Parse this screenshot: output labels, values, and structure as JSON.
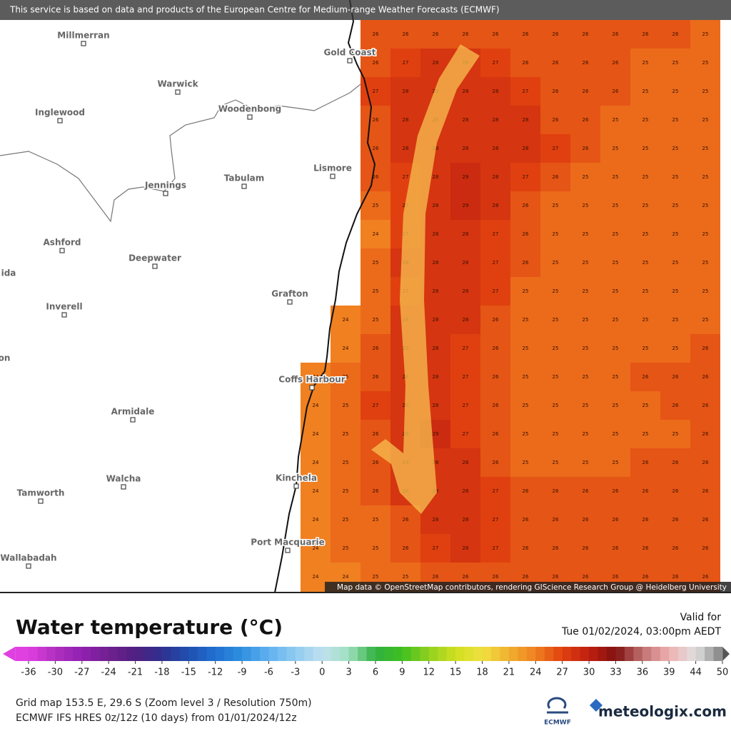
{
  "header": {
    "attribution": "This service is based on data and products of the European Centre for Medium-range Weather Forecasts (ECMWF)"
  },
  "map": {
    "towns": [
      "Millmerran",
      "Warwick",
      "Gold Coast",
      "Inglewood",
      "Woodenbong",
      "Lismore",
      "Tabulam",
      "Jennings",
      "Ashford",
      "Deepwater",
      "Grafton",
      "Inverell",
      "Coffs Harbour",
      "Armidale",
      "Walcha",
      "Kinchela",
      "Tamworth",
      "Port Macquarie",
      "Wallabadah",
      "ida",
      "on"
    ],
    "credit": "Map data © OpenStreetMap contributors, rendering GIScience Research Group @ Heidelberg University"
  },
  "sea": {
    "grid": [
      [
        null,
        null,
        null,
        26,
        26,
        26,
        26,
        26,
        26,
        26,
        26,
        26,
        26,
        26,
        25
      ],
      [
        null,
        null,
        null,
        26,
        27,
        28,
        28,
        27,
        26,
        26,
        26,
        26,
        25,
        25,
        25
      ],
      [
        null,
        null,
        null,
        27,
        28,
        28,
        28,
        28,
        27,
        26,
        26,
        26,
        25,
        25,
        25
      ],
      [
        null,
        null,
        null,
        26,
        28,
        28,
        28,
        28,
        28,
        26,
        26,
        25,
        25,
        25,
        25
      ],
      [
        null,
        null,
        null,
        26,
        28,
        28,
        28,
        28,
        28,
        27,
        26,
        25,
        25,
        25,
        25
      ],
      [
        null,
        null,
        null,
        26,
        27,
        28,
        29,
        28,
        27,
        26,
        25,
        25,
        25,
        25,
        25
      ],
      [
        null,
        null,
        null,
        25,
        27,
        28,
        29,
        28,
        26,
        25,
        25,
        25,
        25,
        25,
        25
      ],
      [
        null,
        null,
        null,
        24,
        27,
        28,
        28,
        27,
        26,
        25,
        25,
        25,
        25,
        25,
        25
      ],
      [
        null,
        null,
        null,
        25,
        28,
        28,
        28,
        27,
        26,
        25,
        25,
        25,
        25,
        25,
        25
      ],
      [
        null,
        null,
        null,
        25,
        27,
        28,
        28,
        27,
        25,
        25,
        25,
        25,
        25,
        25,
        25
      ],
      [
        null,
        null,
        24,
        25,
        28,
        28,
        28,
        26,
        25,
        25,
        25,
        25,
        25,
        25,
        25
      ],
      [
        null,
        null,
        24,
        26,
        28,
        28,
        27,
        26,
        25,
        25,
        25,
        25,
        25,
        25,
        26
      ],
      [
        null,
        24,
        25,
        26,
        28,
        28,
        27,
        26,
        25,
        25,
        25,
        25,
        26,
        26,
        26
      ],
      [
        null,
        24,
        25,
        27,
        28,
        28,
        27,
        26,
        25,
        25,
        25,
        25,
        25,
        26,
        26
      ],
      [
        null,
        24,
        25,
        26,
        28,
        29,
        27,
        26,
        25,
        25,
        25,
        25,
        25,
        25,
        26
      ],
      [
        null,
        24,
        25,
        26,
        28,
        28,
        28,
        26,
        25,
        25,
        25,
        25,
        26,
        26,
        26
      ],
      [
        null,
        24,
        25,
        26,
        28,
        28,
        28,
        27,
        26,
        26,
        26,
        26,
        26,
        26,
        26
      ],
      [
        null,
        24,
        25,
        25,
        26,
        28,
        28,
        27,
        26,
        26,
        26,
        26,
        26,
        26,
        26
      ],
      [
        null,
        24,
        25,
        25,
        26,
        27,
        28,
        27,
        26,
        26,
        26,
        26,
        26,
        26,
        26
      ],
      [
        null,
        24,
        24,
        25,
        25,
        26,
        26,
        26,
        26,
        26,
        26,
        26,
        26,
        26,
        26
      ]
    ]
  },
  "title": "Water temperature (°C)",
  "valid_label": "Valid for",
  "valid_time": "Tue 01/02/2024, 03:00pm AEDT",
  "legend": {
    "ticks": [
      -36,
      -30,
      -27,
      -24,
      -21,
      -18,
      -15,
      -12,
      -9,
      -6,
      -3,
      0,
      3,
      6,
      9,
      12,
      15,
      18,
      21,
      24,
      27,
      30,
      33,
      36,
      39,
      44,
      50
    ],
    "colors": [
      "#e040e0",
      "#b030c0",
      "#9020b0",
      "#702090",
      "#502080",
      "#303090",
      "#2050b0",
      "#2070d0",
      "#3090e0",
      "#60b0f0",
      "#90ccf0",
      "#c0e0f0",
      "#a0e0c0",
      "#30b040",
      "#40c020",
      "#90d020",
      "#d0e020",
      "#f0e040",
      "#f0b030",
      "#f08020",
      "#e04010",
      "#c02010",
      "#801010",
      "#c07070",
      "#f0b0b0",
      "#e0e0e0",
      "#808080"
    ]
  },
  "footer": {
    "grid_info": "Grid map 153.5 E, 29.6 S (Zoom level 3 / Resolution 750m)",
    "model_info": "ECMWF IFS HRES 0z/12z (10 days) from 01/01/2024/12z"
  },
  "logos": {
    "ecmwf": "ECMWF",
    "meteologix": "meteologix.com"
  }
}
